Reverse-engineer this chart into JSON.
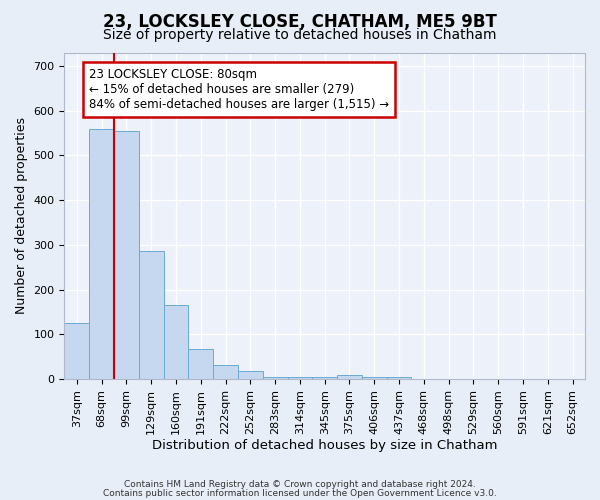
{
  "title": "23, LOCKSLEY CLOSE, CHATHAM, ME5 9BT",
  "subtitle": "Size of property relative to detached houses in Chatham",
  "xlabel": "Distribution of detached houses by size in Chatham",
  "ylabel": "Number of detached properties",
  "categories": [
    "37sqm",
    "68sqm",
    "99sqm",
    "129sqm",
    "160sqm",
    "191sqm",
    "222sqm",
    "252sqm",
    "283sqm",
    "314sqm",
    "345sqm",
    "375sqm",
    "406sqm",
    "437sqm",
    "468sqm",
    "498sqm",
    "529sqm",
    "560sqm",
    "591sqm",
    "621sqm",
    "652sqm"
  ],
  "values": [
    125,
    560,
    555,
    287,
    165,
    68,
    31,
    19,
    5,
    5,
    5,
    10,
    4,
    4,
    0,
    0,
    0,
    0,
    0,
    0,
    0
  ],
  "bar_color": "#c5d8f0",
  "bar_edge_color": "#6aaad4",
  "annotation_text": "23 LOCKSLEY CLOSE: 80sqm\n← 15% of detached houses are smaller (279)\n84% of semi-detached houses are larger (1,515) →",
  "annotation_box_color": "#ffffff",
  "annotation_box_edge_color": "#cc0000",
  "red_line_color": "#cc0000",
  "ylim": [
    0,
    730
  ],
  "yticks": [
    0,
    100,
    200,
    300,
    400,
    500,
    600,
    700
  ],
  "bg_color": "#e8eef8",
  "plot_bg_color": "#edf2fa",
  "grid_color": "#ffffff",
  "footer_line1": "Contains HM Land Registry data © Crown copyright and database right 2024.",
  "footer_line2": "Contains public sector information licensed under the Open Government Licence v3.0.",
  "title_fontsize": 12,
  "subtitle_fontsize": 10,
  "xlabel_fontsize": 9.5,
  "ylabel_fontsize": 9,
  "tick_fontsize": 8,
  "annot_fontsize": 8.5,
  "footer_fontsize": 6.5
}
